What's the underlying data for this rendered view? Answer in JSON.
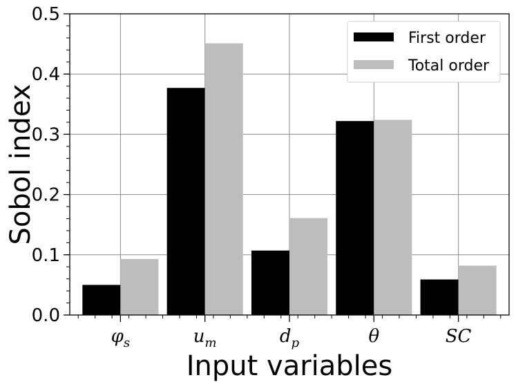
{
  "chart_data": {
    "type": "bar",
    "categories": [
      {
        "base": "φ",
        "sub": "s"
      },
      {
        "base": "u",
        "sub": "m"
      },
      {
        "base": "d",
        "sub": "p"
      },
      {
        "base": "θ",
        "sub": ""
      },
      {
        "base": "SC",
        "sub": ""
      }
    ],
    "series": [
      {
        "name": "First order",
        "values": [
          0.05,
          0.377,
          0.107,
          0.322,
          0.059
        ]
      },
      {
        "name": "Total order",
        "values": [
          0.093,
          0.451,
          0.161,
          0.324,
          0.082
        ]
      }
    ],
    "colors": [
      "#000000",
      "#bdbdbd"
    ],
    "title": "",
    "xlabel": "Input variables",
    "ylabel": "Sobol index",
    "ylim": [
      0,
      0.5
    ],
    "yticks": [
      "0.0",
      "0.1",
      "0.2",
      "0.3",
      "0.4",
      "0.5"
    ],
    "grid": true,
    "legend_position": "top-right"
  }
}
